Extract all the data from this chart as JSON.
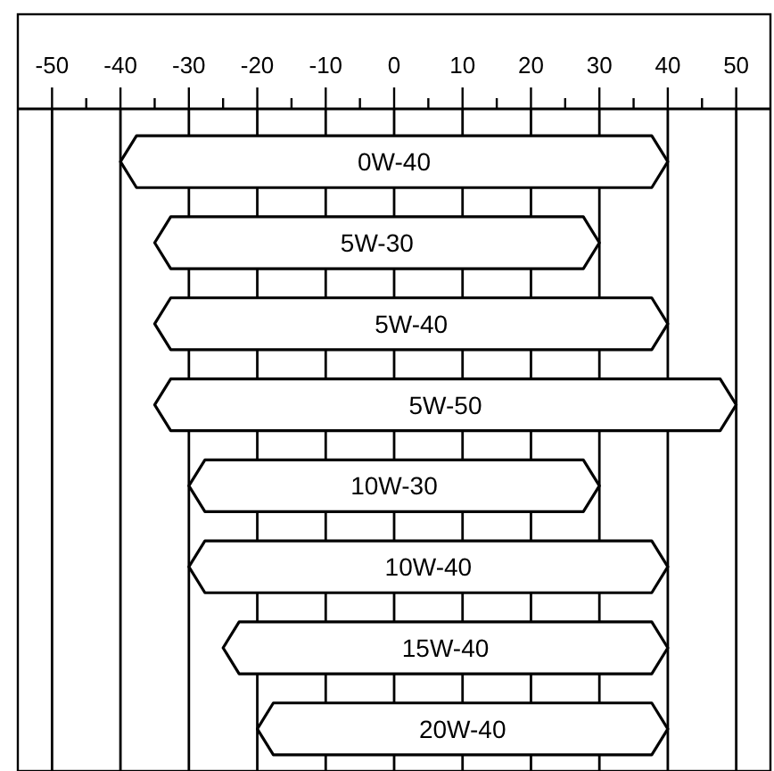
{
  "chart_data": {
    "type": "bar",
    "orientation": "horizontal",
    "categories": [
      "0W-40",
      "5W-30",
      "5W-40",
      "5W-50",
      "10W-30",
      "10W-40",
      "15W-40",
      "20W-40"
    ],
    "base": [
      -40,
      -35,
      -35,
      -35,
      -30,
      -30,
      -25,
      -20
    ],
    "values": [
      80,
      65,
      75,
      85,
      60,
      70,
      65,
      60
    ],
    "color": "#ffffff",
    "xlim": [
      -55,
      55
    ],
    "xticks": [
      -50,
      {
        "value": -45,
        "label": null
      },
      -40,
      {
        "value": -35,
        "label": null
      },
      -30,
      {
        "value": -25,
        "label": null
      },
      -20,
      {
        "value": -15,
        "label": null
      },
      -10,
      {
        "value": -5,
        "label": null
      },
      0,
      {
        "value": 5,
        "label": null
      },
      10,
      {
        "value": 15,
        "label": null
      },
      20,
      {
        "value": 25,
        "label": null
      },
      30,
      {
        "value": 35,
        "label": null
      },
      40,
      {
        "value": 45,
        "label": null
      },
      50
    ],
    "grid": "x"
  }
}
